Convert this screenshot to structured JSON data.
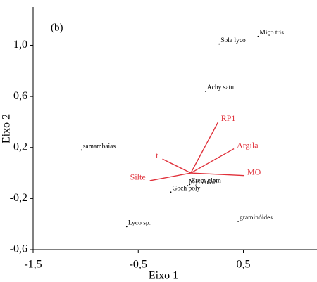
{
  "chart_data": {
    "type": "biplot",
    "title": "(b)",
    "xlabel": "Eixo 1",
    "ylabel": "Eixo 2",
    "xlim": [
      -1.5,
      1.2
    ],
    "ylim": [
      -0.6,
      1.3
    ],
    "xticks": [
      {
        "value": -1.5,
        "label": "-1,5"
      },
      {
        "value": -0.5,
        "label": "-0,5"
      },
      {
        "value": 0.5,
        "label": "0,5"
      }
    ],
    "yticks": [
      {
        "value": 1.0,
        "label": "1,0"
      },
      {
        "value": 0.6,
        "label": "0,6"
      },
      {
        "value": 0.2,
        "label": "0,2"
      },
      {
        "value": -0.2,
        "label": "-0,2"
      },
      {
        "value": -0.6,
        "label": "-0,6"
      }
    ],
    "point_color": "#000000",
    "vector_color": "#e0303a",
    "points": [
      {
        "label": "Miço tris",
        "x": 0.64,
        "y": 1.07
      },
      {
        "label": "Sola lyco",
        "x": 0.27,
        "y": 1.01
      },
      {
        "label": "Achy satu",
        "x": 0.14,
        "y": 0.64
      },
      {
        "label": "samambaias",
        "x": -1.04,
        "y": 0.18
      },
      {
        "label": "Erem glom",
        "x": -0.01,
        "y": -0.09
      },
      {
        "label": "Myrs umb",
        "x": -0.03,
        "y": -0.1
      },
      {
        "label": "Goch poly",
        "x": -0.19,
        "y": -0.15
      },
      {
        "label": "Lyco sp.",
        "x": -0.61,
        "y": -0.42
      },
      {
        "label": "graminóides",
        "x": 0.45,
        "y": -0.38
      }
    ],
    "vectors": [
      {
        "label": "RP1",
        "x": 0.26,
        "y": 0.4
      },
      {
        "label": "Argila",
        "x": 0.41,
        "y": 0.19
      },
      {
        "label": "MO",
        "x": 0.51,
        "y": -0.02
      },
      {
        "label": "Silte",
        "x": -0.39,
        "y": -0.06
      },
      {
        "label": "t",
        "x": -0.27,
        "y": 0.11
      }
    ]
  }
}
